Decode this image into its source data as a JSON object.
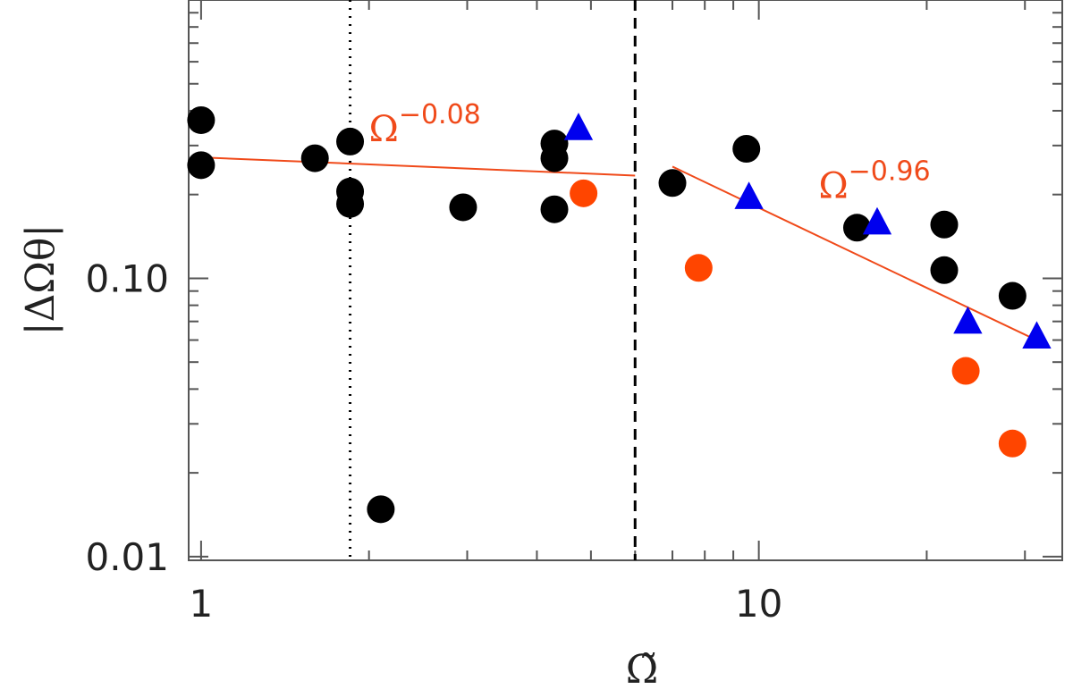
{
  "chart_data": {
    "type": "scatter",
    "title": "",
    "xlabel": "Ω̃",
    "ylabel": "|ΔΩθ|",
    "xscale": "log",
    "yscale": "log",
    "xlim": [
      0.95,
      35
    ],
    "ylim": [
      0.0097,
      1.0
    ],
    "x_ticks": [
      {
        "value": 1,
        "label": "1"
      },
      {
        "value": 10,
        "label": "10"
      }
    ],
    "y_ticks": [
      {
        "value": 0.01,
        "label": "0.01"
      },
      {
        "value": 0.1,
        "label": "0.10"
      }
    ],
    "grid": false,
    "colors": {
      "black_points": "#000000",
      "orange_points": "#ff4500",
      "blue_triangles": "#0000ee",
      "fit_line": "#f04a1a"
    },
    "vertical_lines": [
      {
        "x": 1.85,
        "style": "dotted"
      },
      {
        "x": 6.0,
        "style": "dashed"
      }
    ],
    "series": [
      {
        "marker": "circle",
        "color": "#000000",
        "points": [
          {
            "x": 1.0,
            "y": 0.37
          },
          {
            "x": 1.0,
            "y": 0.255
          },
          {
            "x": 1.6,
            "y": 0.27
          },
          {
            "x": 1.85,
            "y": 0.31
          },
          {
            "x": 1.85,
            "y": 0.205
          },
          {
            "x": 1.85,
            "y": 0.185
          },
          {
            "x": 2.1,
            "y": 0.0148
          },
          {
            "x": 2.95,
            "y": 0.18
          },
          {
            "x": 4.3,
            "y": 0.305
          },
          {
            "x": 4.3,
            "y": 0.27
          },
          {
            "x": 4.3,
            "y": 0.177
          },
          {
            "x": 7.0,
            "y": 0.22
          },
          {
            "x": 9.5,
            "y": 0.292
          },
          {
            "x": 15.0,
            "y": 0.152
          },
          {
            "x": 21.5,
            "y": 0.156
          },
          {
            "x": 21.5,
            "y": 0.107
          },
          {
            "x": 28.5,
            "y": 0.0865
          }
        ]
      },
      {
        "marker": "circle",
        "color": "#ff4500",
        "points": [
          {
            "x": 4.85,
            "y": 0.202
          },
          {
            "x": 7.8,
            "y": 0.109
          },
          {
            "x": 23.5,
            "y": 0.0465
          },
          {
            "x": 28.5,
            "y": 0.0255
          }
        ]
      },
      {
        "marker": "triangle",
        "color": "#0000ee",
        "points": [
          {
            "x": 4.75,
            "y": 0.345
          },
          {
            "x": 9.6,
            "y": 0.195
          },
          {
            "x": 16.3,
            "y": 0.158
          },
          {
            "x": 23.7,
            "y": 0.0695
          },
          {
            "x": 31.5,
            "y": 0.0615
          }
        ]
      }
    ],
    "fits": [
      {
        "label_base": "Ω",
        "label_exp": "−0.08",
        "x": [
          1.0,
          6.0
        ],
        "y": [
          0.272,
          0.234
        ],
        "label_x": 2.0,
        "label_y": 0.355
      },
      {
        "label_base": "Ω",
        "label_exp": "−0.96",
        "x": [
          7.0,
          31.5
        ],
        "y": [
          0.252,
          0.0599
        ],
        "label_x": 12.8,
        "label_y": 0.222
      }
    ]
  }
}
